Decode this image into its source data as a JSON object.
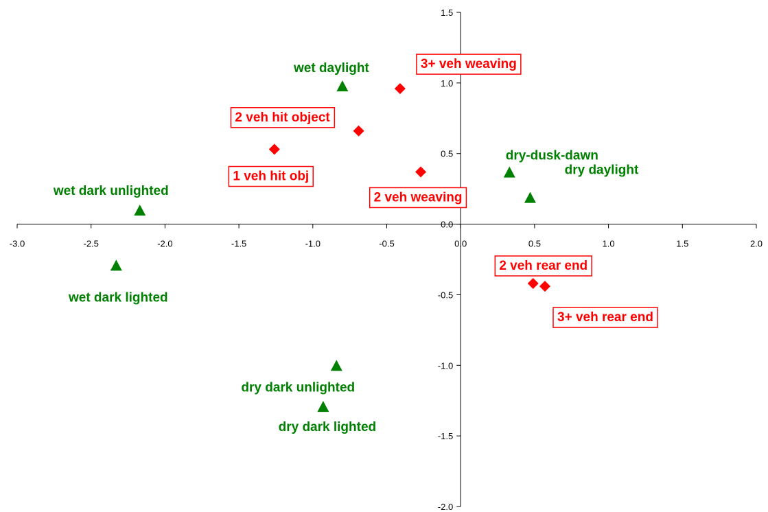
{
  "chart_data": {
    "type": "scatter",
    "title": "",
    "xlabel": "",
    "ylabel": "",
    "xlim": [
      -3.0,
      2.0
    ],
    "ylim": [
      -2.0,
      1.5
    ],
    "x_ticks": [
      "-3.0",
      "-2.5",
      "-2.0",
      "-1.5",
      "-1.0",
      "-0.5",
      "0.0",
      "0.5",
      "1.0",
      "1.5",
      "2.0"
    ],
    "y_ticks": [
      "-2.0",
      "-1.5",
      "-1.0",
      "-0.5",
      "0.0",
      "0.5",
      "1.0",
      "1.5"
    ],
    "grid": false,
    "legend": "none",
    "series": [
      {
        "marker": "triangle",
        "color": "#008000",
        "boxed_labels": false,
        "points": [
          {
            "label": "wet daylight",
            "x": -0.8,
            "y": 0.97
          },
          {
            "label": "dry-dusk-dawn",
            "x": 0.33,
            "y": 0.36
          },
          {
            "label": "dry daylight",
            "x": 0.47,
            "y": 0.18
          },
          {
            "label": "wet dark unlighted",
            "x": -2.17,
            "y": 0.09
          },
          {
            "label": "wet dark lighted",
            "x": -2.33,
            "y": -0.3
          },
          {
            "label": "dry dark unlighted",
            "x": -0.84,
            "y": -1.01
          },
          {
            "label": "dry dark lighted",
            "x": -0.93,
            "y": -1.3
          }
        ]
      },
      {
        "marker": "diamond",
        "color": "#ff0000",
        "boxed_labels": true,
        "points": [
          {
            "label": "3+ veh weaving",
            "x": -0.41,
            "y": 0.96
          },
          {
            "label": "2 veh hit object",
            "x": -0.69,
            "y": 0.66
          },
          {
            "label": "1 veh hit obj",
            "x": -1.26,
            "y": 0.53
          },
          {
            "label": "2 veh weaving",
            "x": -0.27,
            "y": 0.37
          },
          {
            "label": "2 veh rear end",
            "x": 0.49,
            "y": -0.42
          },
          {
            "label": "3+ veh rear end",
            "x": 0.57,
            "y": -0.44
          }
        ]
      }
    ]
  }
}
